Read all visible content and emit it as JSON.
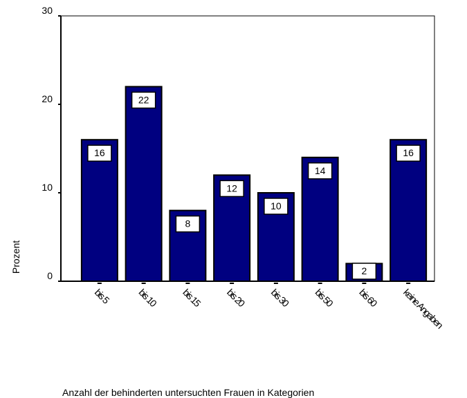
{
  "chart_data": {
    "type": "bar",
    "categories": [
      "bis 5",
      "bis 10",
      "bis 15",
      "bis 20",
      "bis 30",
      "bis 50",
      "bis 60",
      "keine Angaben"
    ],
    "values": [
      16,
      22,
      8,
      12,
      10,
      14,
      2,
      16
    ],
    "color": "#000080",
    "x_label": "Anzahl der behinderten untersuchten Frauen in Kategorien",
    "y_label": "Prozent",
    "ylim": [
      0,
      30
    ],
    "yticks": [
      0,
      10,
      20,
      30
    ]
  }
}
